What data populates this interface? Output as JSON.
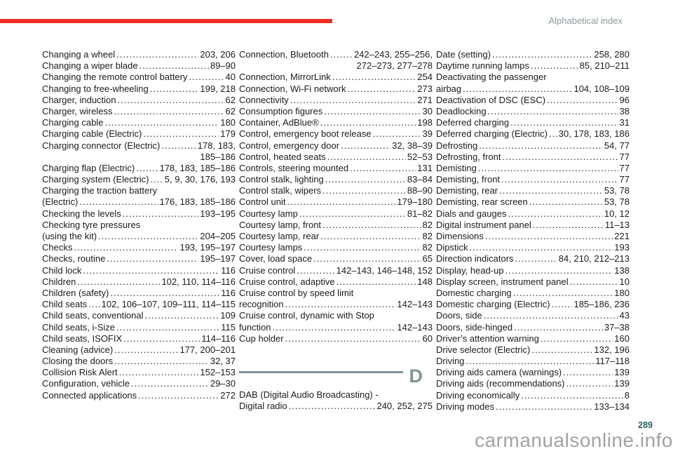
{
  "header": {
    "title": "Alphabetical index"
  },
  "page_number": "289",
  "watermark": "carmanualsonline.info",
  "colors": {
    "accent_red": "#ee2e24",
    "muted_teal_header": "#8d9b9e",
    "divider_teal": "#7f9496",
    "page_number_teal": "#2c5c63",
    "watermark_gray": "#a2a2a2",
    "text": "#1b1b1b"
  },
  "columns": [
    {
      "lines": [
        {
          "t": "Changing a wheel",
          "p": "203, 206"
        },
        {
          "t": "Changing a wiper blade",
          "p": "89–90"
        },
        {
          "t": "Changing the remote control battery",
          "p": "40"
        },
        {
          "t": "Changing to free-wheeling",
          "p": "199, 218"
        },
        {
          "t": "Charger, induction",
          "p": "62"
        },
        {
          "t": "Charger, wireless",
          "p": "62"
        },
        {
          "t": "Charging cable",
          "p": "180"
        },
        {
          "t": "Charging cable (Electric)",
          "p": "179"
        },
        {
          "t": "Charging connector (Electric)",
          "p": "178, 183,"
        },
        {
          "p": "185–186"
        },
        {
          "t": "Charging flap (Electric)",
          "p": "178, 183, 185–186"
        },
        {
          "t": "Charging system (Electric)",
          "p": "5, 9, 30, 176, 193"
        },
        {
          "t": "Charging the traction battery"
        },
        {
          "t": "(Electric)",
          "p": "176, 183, 185–186"
        },
        {
          "t": "Checking the levels",
          "p": "193–195"
        },
        {
          "t": "Checking tyre pressures"
        },
        {
          "t": "(using the kit)",
          "p": "204–205"
        },
        {
          "t": "Checks",
          "p": "193, 195–197"
        },
        {
          "t": "Checks, routine",
          "p": "195–197"
        },
        {
          "t": "Child lock",
          "p": "116"
        },
        {
          "t": "Children",
          "p": "102, 110, 114–116"
        },
        {
          "t": "Children (safety)",
          "p": "116"
        },
        {
          "t": "Child seats",
          "p": "102, 106–107, 109–111, 114–115"
        },
        {
          "t": "Child seats, conventional",
          "p": "109"
        },
        {
          "t": "Child seats, i-Size",
          "p": "115"
        },
        {
          "t": "Child seats, ISOFIX",
          "p": "114–116"
        },
        {
          "t": "Cleaning (advice)",
          "p": "177, 200–201"
        },
        {
          "t": "Closing the doors",
          "p": "32, 37"
        },
        {
          "t": "Collision Risk Alert",
          "p": "152–153"
        },
        {
          "t": "Configuration, vehicle",
          "p": "29–30"
        },
        {
          "t": "Connected applications",
          "p": "272"
        }
      ]
    },
    {
      "lines": [
        {
          "t": "Connection, Bluetooth",
          "p": "242–243, 255–256,"
        },
        {
          "p": "272–273, 277–278"
        },
        {
          "t": "Connection, MirrorLink",
          "p": "254"
        },
        {
          "t": "Connection, Wi-Fi network",
          "p": "273"
        },
        {
          "t": "Connectivity",
          "p": "271"
        },
        {
          "t": "Consumption figures",
          "p": "30"
        },
        {
          "t": "Container, AdBlue®",
          "p": "198"
        },
        {
          "t": "Control, emergency boot release",
          "p": "39"
        },
        {
          "t": "Control, emergency door",
          "p": "32, 38–39"
        },
        {
          "t": "Control, heated seats",
          "p": "52–53"
        },
        {
          "t": "Controls, steering mounted",
          "p": "131"
        },
        {
          "t": "Control stalk, lighting",
          "p": "83–84"
        },
        {
          "t": "Control stalk, wipers",
          "p": "88–90"
        },
        {
          "t": "Control unit",
          "p": "179–180"
        },
        {
          "t": "Courtesy lamp",
          "p": "81–82"
        },
        {
          "t": "Courtesy lamp, front",
          "p": "82"
        },
        {
          "t": "Courtesy lamp, rear",
          "p": "82"
        },
        {
          "t": "Courtesy lamps",
          "p": "82"
        },
        {
          "t": "Cover, load space",
          "p": "65"
        },
        {
          "t": "Cruise control",
          "p": "142–143, 146–148, 152"
        },
        {
          "t": "Cruise control, adaptive",
          "p": "148"
        },
        {
          "t": "Cruise control by speed limit"
        },
        {
          "t": "recognition",
          "p": "142–143"
        },
        {
          "t": "Cruise control, dynamic with Stop"
        },
        {
          "t": "function",
          "p": "142–143"
        },
        {
          "t": "Cup holder",
          "p": "60"
        },
        {
          "divider": "D"
        },
        {
          "t": "DAB (Digital Audio Broadcasting) -"
        },
        {
          "t": "Digital radio",
          "p": "240, 252, 275"
        }
      ]
    },
    {
      "lines": [
        {
          "t": "Date (setting)",
          "p": "258, 280"
        },
        {
          "t": "Daytime running lamps",
          "p": "85, 210–211"
        },
        {
          "t": "Deactivating the passenger"
        },
        {
          "t": "airbag",
          "p": "104, 108–109"
        },
        {
          "t": "Deactivation of DSC (ESC)",
          "p": "96"
        },
        {
          "t": "Deadlocking",
          "p": "38"
        },
        {
          "t": "Deferred charging",
          "p": "31"
        },
        {
          "t": "Deferred charging (Electric)",
          "p": "30, 178, 183, 186"
        },
        {
          "t": "Defrosting",
          "p": "54, 77"
        },
        {
          "t": "Defrosting, front",
          "p": "77"
        },
        {
          "t": "Demisting",
          "p": "77"
        },
        {
          "t": "Demisting, front",
          "p": "77"
        },
        {
          "t": "Demisting, rear",
          "p": "53, 78"
        },
        {
          "t": "Demisting, rear screen",
          "p": "53, 78"
        },
        {
          "t": "Dials and gauges",
          "p": "10, 12"
        },
        {
          "t": "Digital instrument panel",
          "p": "11–13"
        },
        {
          "t": "Dimensions",
          "p": "221"
        },
        {
          "t": "Dipstick",
          "p": "193"
        },
        {
          "t": "Direction indicators",
          "p": "84, 210, 212–213"
        },
        {
          "t": "Display, head-up",
          "p": "138"
        },
        {
          "t": "Display screen, instrument panel",
          "p": "10"
        },
        {
          "t": "Domestic charging",
          "p": "180"
        },
        {
          "t": "Domestic charging (Electric)",
          "p": "185–186, 236"
        },
        {
          "t": "Doors, side",
          "p": "43"
        },
        {
          "t": "Doors, side-hinged",
          "p": "37–38"
        },
        {
          "t": "Driver’s attention warning",
          "p": "160"
        },
        {
          "t": "Drive selector (Electric)",
          "p": "132, 196"
        },
        {
          "t": "Driving",
          "p": "117–118"
        },
        {
          "t": "Driving aids camera (warnings)",
          "p": "139"
        },
        {
          "t": "Driving aids (recommendations)",
          "p": "139"
        },
        {
          "t": "Driving economically",
          "p": "8"
        },
        {
          "t": "Driving modes",
          "p": "133–134"
        }
      ]
    }
  ]
}
